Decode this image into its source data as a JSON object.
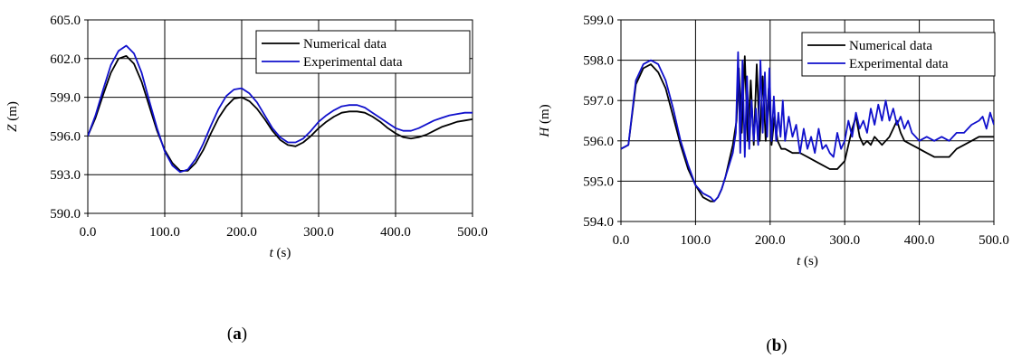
{
  "colors": {
    "numerical": "#000000",
    "experimental": "#1010cc",
    "grid": "#000000"
  },
  "chart_data": [
    {
      "type": "line",
      "panel_label": "a",
      "xlabel": {
        "var": "t",
        "unit": "(s)"
      },
      "ylabel": {
        "var": "Z",
        "unit": "(m)"
      },
      "xlim": [
        0,
        500
      ],
      "ylim": [
        590,
        605
      ],
      "xticks": [
        "0.0",
        "100.0",
        "200.0",
        "300.0",
        "400.0",
        "500.0"
      ],
      "yticks": [
        "590.0",
        "593.0",
        "596.0",
        "599.0",
        "602.0",
        "605.0"
      ],
      "grid": true,
      "legend_position": "top-right",
      "series": [
        {
          "name": "Numerical data",
          "x": [
            0,
            10,
            20,
            30,
            40,
            50,
            60,
            70,
            80,
            90,
            100,
            110,
            120,
            130,
            140,
            150,
            160,
            170,
            180,
            190,
            200,
            210,
            220,
            230,
            240,
            250,
            260,
            270,
            280,
            290,
            300,
            310,
            320,
            330,
            340,
            350,
            360,
            370,
            380,
            390,
            400,
            410,
            420,
            430,
            440,
            450,
            460,
            470,
            480,
            490,
            500
          ],
          "y": [
            596.0,
            597.4,
            599.2,
            600.9,
            602.0,
            602.2,
            601.6,
            600.2,
            598.3,
            596.4,
            594.9,
            593.9,
            593.3,
            593.3,
            593.9,
            594.9,
            596.2,
            597.4,
            598.3,
            598.9,
            599.0,
            598.7,
            598.1,
            597.3,
            596.4,
            595.7,
            595.3,
            595.2,
            595.5,
            596.0,
            596.6,
            597.1,
            597.5,
            597.8,
            597.9,
            597.9,
            597.8,
            597.5,
            597.1,
            596.6,
            596.2,
            595.9,
            595.8,
            595.9,
            596.1,
            596.4,
            596.7,
            596.9,
            597.1,
            597.2,
            597.3
          ]
        },
        {
          "name": "Experimental data",
          "x": [
            0,
            10,
            20,
            30,
            40,
            50,
            60,
            70,
            80,
            90,
            100,
            110,
            120,
            130,
            140,
            150,
            160,
            170,
            180,
            190,
            200,
            210,
            220,
            230,
            240,
            250,
            260,
            270,
            280,
            290,
            300,
            310,
            320,
            330,
            340,
            350,
            360,
            370,
            380,
            390,
            400,
            410,
            420,
            430,
            440,
            450,
            460,
            470,
            480,
            490,
            500
          ],
          "y": [
            596.0,
            597.6,
            599.6,
            601.5,
            602.6,
            603.0,
            602.4,
            600.9,
            598.7,
            596.6,
            594.8,
            593.7,
            593.2,
            593.4,
            594.2,
            595.4,
            596.8,
            598.1,
            599.1,
            599.6,
            599.7,
            599.3,
            598.6,
            597.6,
            596.6,
            595.9,
            595.5,
            595.5,
            595.8,
            596.4,
            597.1,
            597.6,
            598.0,
            598.3,
            598.4,
            598.4,
            598.2,
            597.8,
            597.4,
            597.0,
            596.6,
            596.4,
            596.4,
            596.6,
            596.9,
            597.2,
            597.4,
            597.6,
            597.7,
            597.8,
            597.8
          ]
        }
      ]
    },
    {
      "type": "line",
      "panel_label": "b",
      "xlabel": {
        "var": "t",
        "unit": "(s)"
      },
      "ylabel": {
        "var": "H",
        "unit": "(m)"
      },
      "xlim": [
        0,
        500
      ],
      "ylim": [
        594,
        599
      ],
      "xticks": [
        "0.0",
        "100.0",
        "200.0",
        "300.0",
        "400.0",
        "500.0"
      ],
      "yticks": [
        "594.0",
        "595.0",
        "596.0",
        "597.0",
        "598.0",
        "599.0"
      ],
      "grid": true,
      "legend_position": "top-right",
      "series": [
        {
          "name": "Numerical data",
          "x": [
            0,
            10,
            20,
            30,
            40,
            50,
            60,
            70,
            80,
            90,
            100,
            110,
            120,
            125,
            130,
            135,
            140,
            145,
            150,
            155,
            158,
            162,
            166,
            170,
            174,
            178,
            182,
            186,
            190,
            194,
            198,
            202,
            206,
            210,
            215,
            220,
            230,
            240,
            250,
            260,
            270,
            280,
            290,
            300,
            305,
            310,
            315,
            320,
            325,
            330,
            335,
            340,
            345,
            350,
            355,
            360,
            365,
            370,
            375,
            380,
            390,
            400,
            410,
            420,
            430,
            440,
            450,
            460,
            470,
            480,
            490,
            500
          ],
          "y": [
            595.8,
            595.9,
            597.4,
            597.8,
            597.9,
            597.7,
            597.3,
            596.6,
            595.9,
            595.3,
            594.9,
            594.6,
            594.5,
            594.5,
            594.6,
            594.8,
            595.1,
            595.5,
            595.9,
            596.5,
            597.8,
            596.2,
            598.1,
            596.0,
            597.5,
            595.9,
            597.9,
            596.0,
            597.6,
            596.0,
            597.3,
            595.9,
            596.6,
            596.0,
            595.8,
            595.8,
            595.7,
            595.7,
            595.6,
            595.5,
            595.4,
            595.3,
            595.3,
            595.5,
            595.9,
            596.3,
            596.6,
            596.1,
            595.9,
            596.0,
            595.9,
            596.1,
            596.0,
            595.9,
            596.0,
            596.1,
            596.3,
            596.5,
            596.2,
            596.0,
            595.9,
            595.8,
            595.7,
            595.6,
            595.6,
            595.6,
            595.8,
            595.9,
            596.0,
            596.1,
            596.1,
            596.1
          ]
        },
        {
          "name": "Experimental data",
          "x": [
            0,
            10,
            20,
            30,
            40,
            50,
            60,
            70,
            80,
            90,
            100,
            110,
            120,
            125,
            130,
            135,
            140,
            145,
            150,
            154,
            157,
            160,
            163,
            166,
            169,
            172,
            175,
            178,
            181,
            184,
            187,
            190,
            193,
            196,
            199,
            202,
            205,
            208,
            211,
            214,
            217,
            220,
            225,
            230,
            235,
            240,
            245,
            250,
            255,
            260,
            265,
            270,
            275,
            280,
            285,
            290,
            295,
            300,
            305,
            310,
            315,
            320,
            325,
            330,
            335,
            340,
            345,
            350,
            355,
            360,
            365,
            370,
            375,
            380,
            385,
            390,
            395,
            400,
            410,
            420,
            430,
            440,
            450,
            460,
            470,
            480,
            485,
            490,
            495,
            500
          ],
          "y": [
            595.8,
            595.9,
            597.5,
            597.9,
            598.0,
            597.9,
            597.5,
            596.8,
            596.0,
            595.4,
            594.9,
            594.7,
            594.6,
            594.5,
            594.6,
            594.8,
            595.1,
            595.4,
            595.7,
            596.2,
            598.2,
            595.7,
            598.0,
            595.6,
            597.6,
            595.8,
            597.0,
            596.0,
            596.8,
            595.9,
            598.0,
            596.2,
            597.7,
            596.1,
            597.8,
            596.0,
            597.1,
            596.0,
            596.7,
            596.1,
            597.0,
            596.0,
            596.6,
            596.1,
            596.4,
            595.7,
            596.3,
            595.8,
            596.1,
            595.7,
            596.3,
            595.8,
            595.9,
            595.7,
            595.6,
            596.2,
            595.8,
            596.0,
            596.5,
            596.1,
            596.7,
            596.3,
            596.5,
            596.2,
            596.8,
            596.4,
            596.9,
            596.5,
            597.0,
            596.5,
            596.8,
            596.4,
            596.6,
            596.3,
            596.5,
            596.2,
            596.1,
            596.0,
            596.1,
            596.0,
            596.1,
            596.0,
            596.2,
            596.2,
            596.4,
            596.5,
            596.6,
            596.3,
            596.7,
            596.4
          ]
        }
      ]
    }
  ]
}
